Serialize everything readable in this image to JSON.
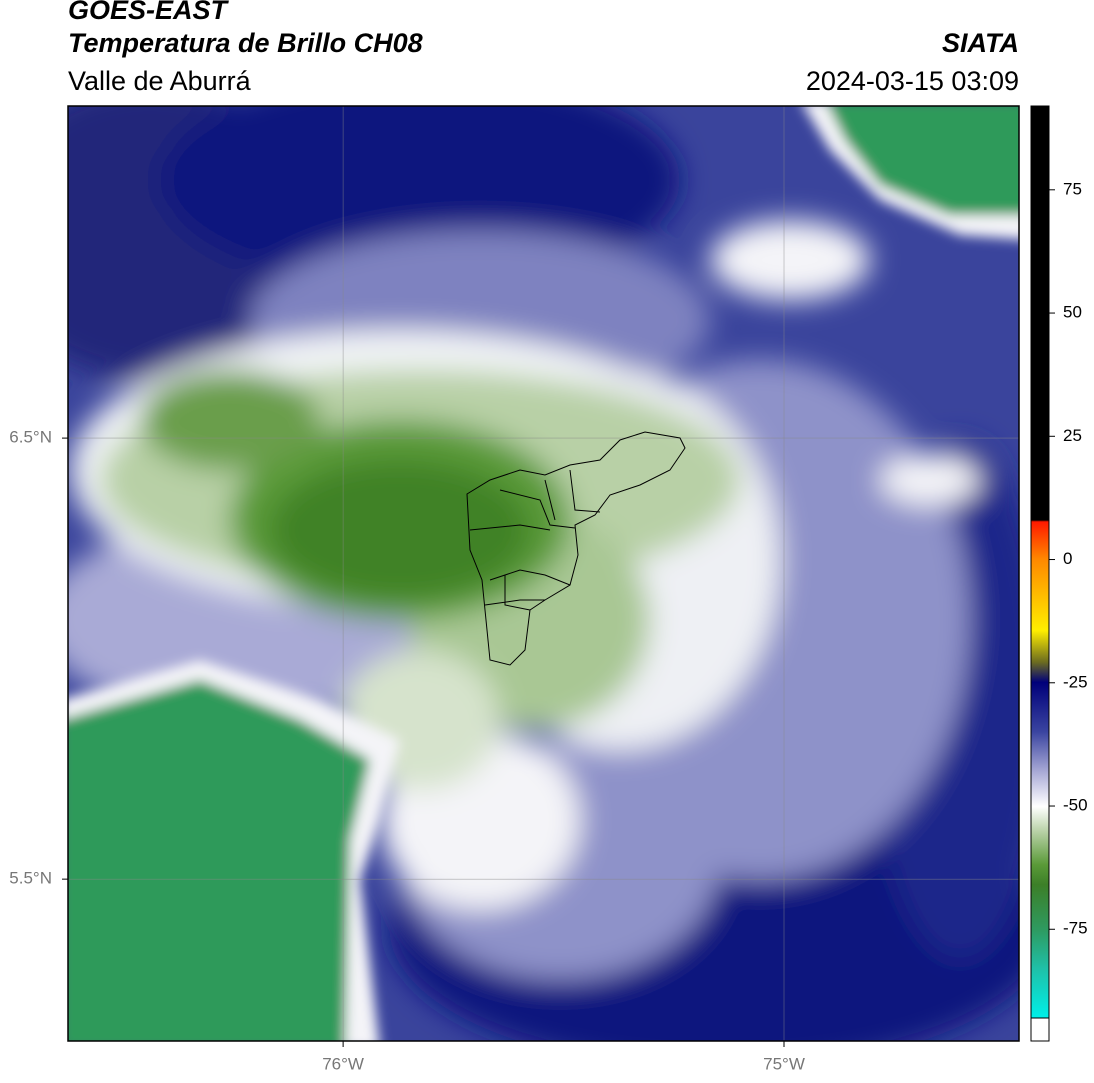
{
  "header": {
    "title": "GOES-EAST",
    "subtitle": "Temperatura de Brillo CH08",
    "region": "Valle de Aburrá",
    "source": "SIATA",
    "datetime": "2024-03-15 03:09"
  },
  "map": {
    "xlim": [
      -76.624,
      -74.467
    ],
    "ylim": [
      5.133,
      7.253
    ],
    "xticks": [
      {
        "value": -76,
        "label": "76°W"
      },
      {
        "value": -75,
        "label": "75°W"
      }
    ],
    "yticks": [
      {
        "value": 6.5,
        "label": "6.5°N"
      },
      {
        "value": 5.5,
        "label": "5.5°N"
      }
    ],
    "grid": true
  },
  "colorbar": {
    "ylim": [
      -93,
      92
    ],
    "ticks": [
      75,
      50,
      25,
      0,
      -25,
      -50,
      -75
    ]
  }
}
